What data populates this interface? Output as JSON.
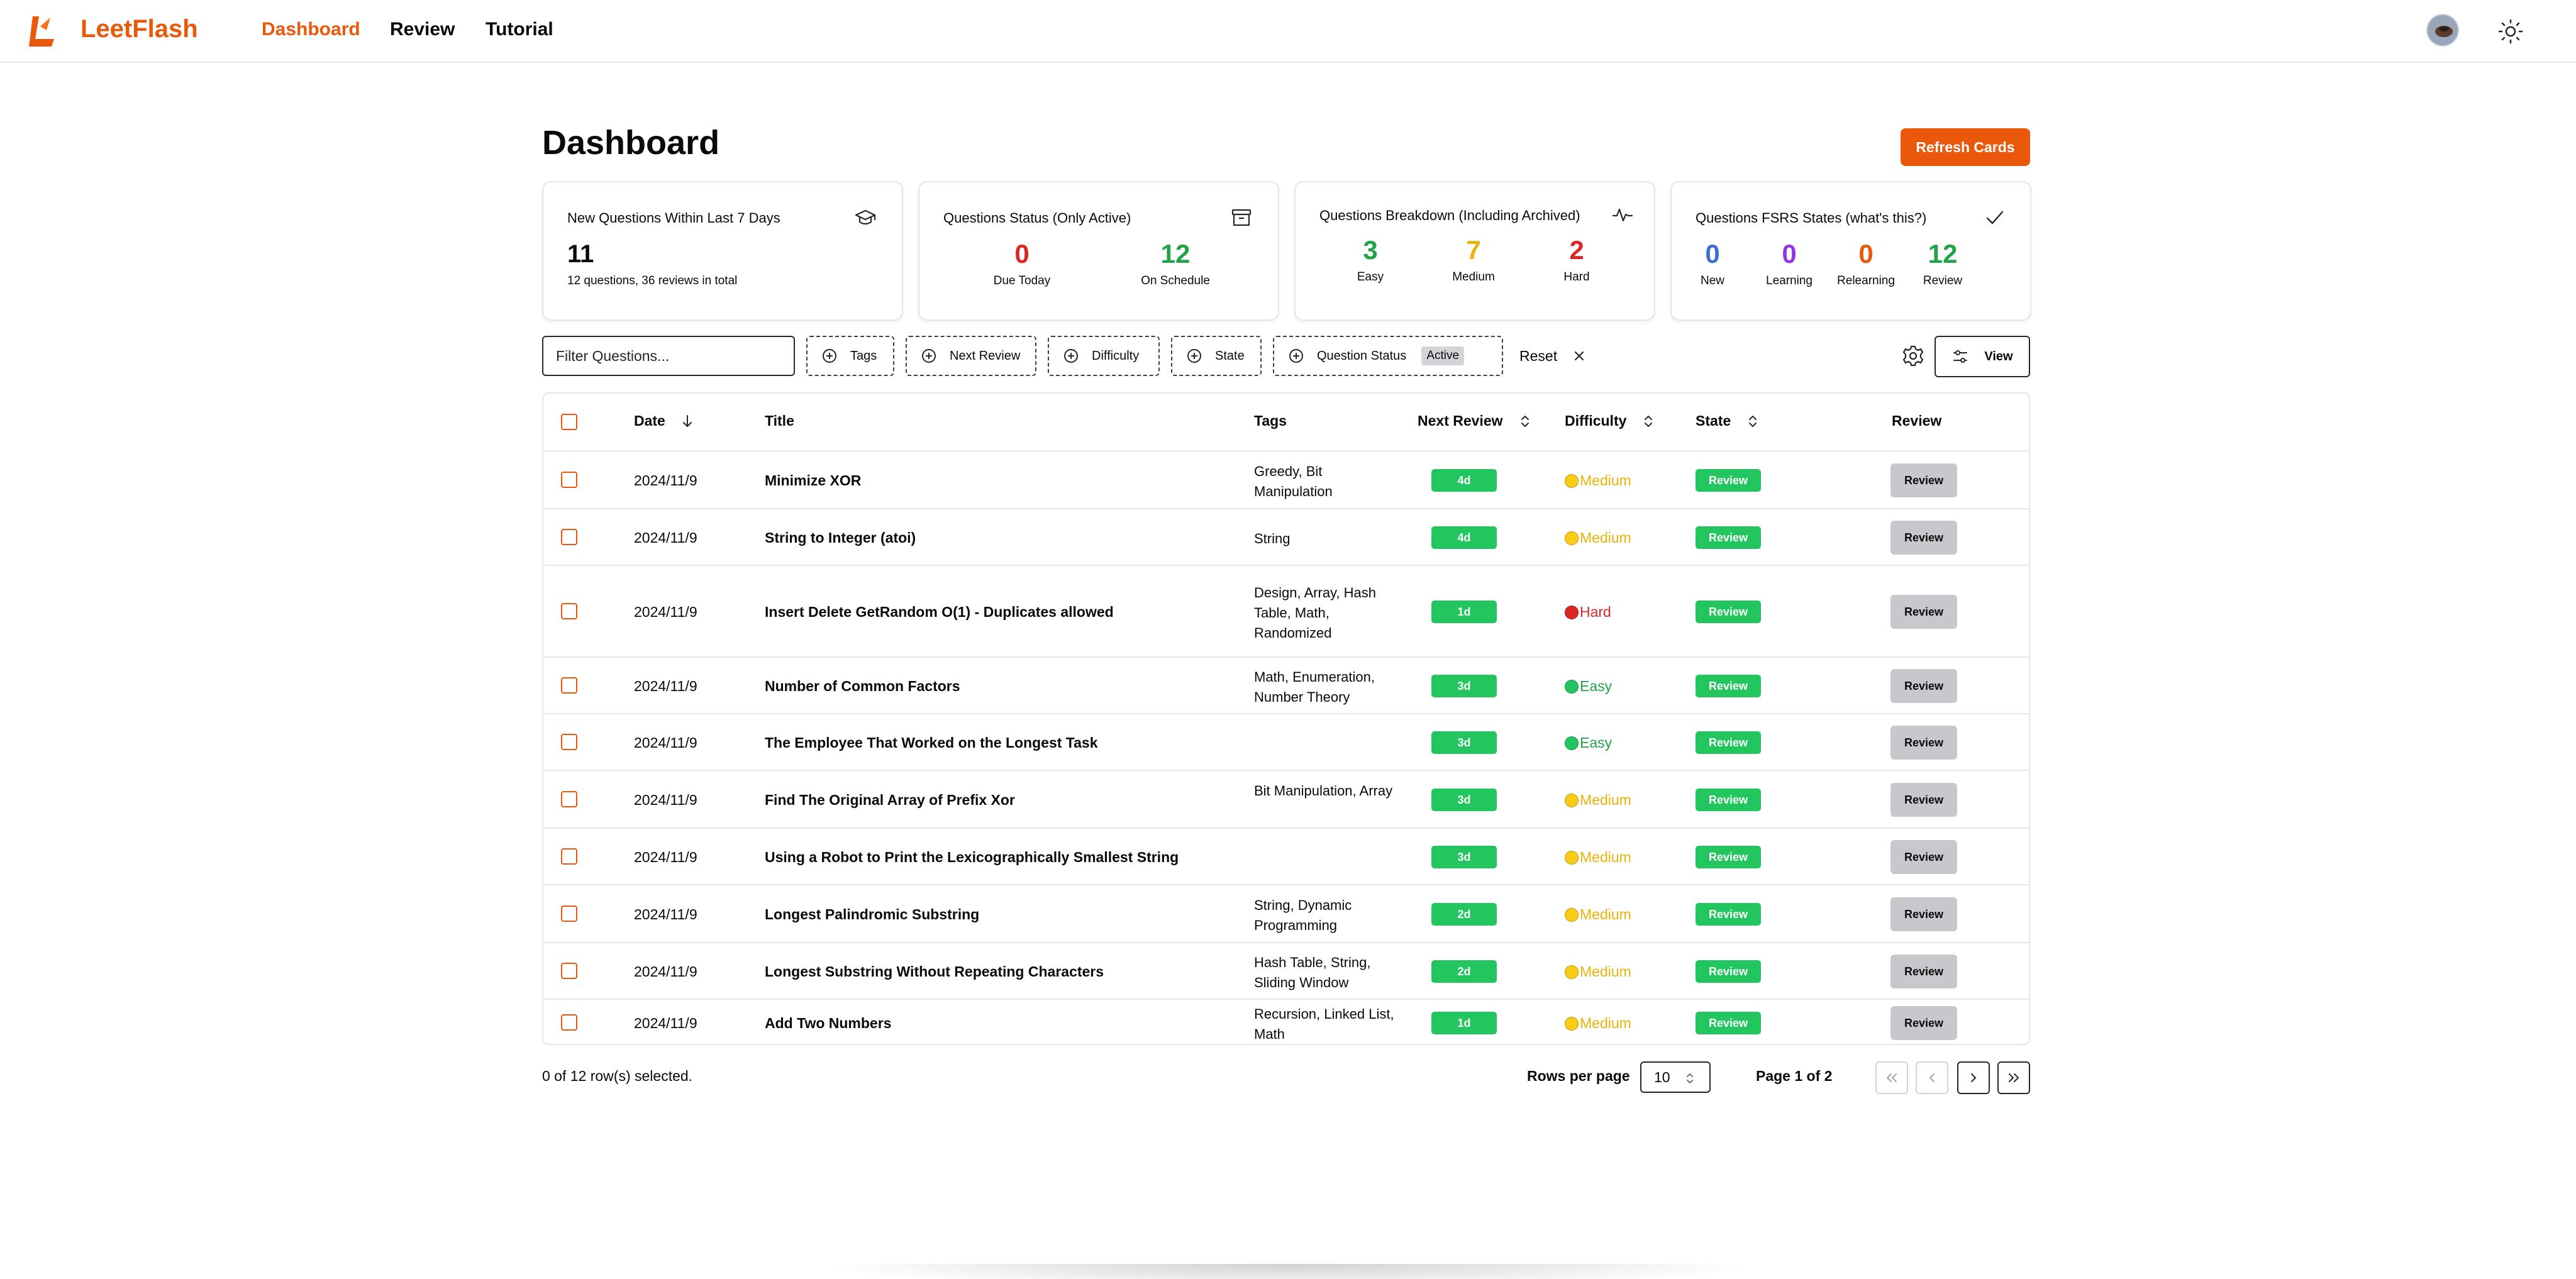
{
  "app": {
    "brand": "LeetFlash",
    "nav": [
      {
        "label": "Dashboard",
        "active": true
      },
      {
        "label": "Review",
        "active": false
      },
      {
        "label": "Tutorial",
        "active": false
      }
    ],
    "accent_color": "#ea580c"
  },
  "header": {
    "title": "Dashboard",
    "refresh_label": "Refresh Cards"
  },
  "cards": {
    "new_questions": {
      "title": "New Questions Within Last 7 Days",
      "icon": "graduation-cap-icon",
      "value": "11",
      "sub": "12 questions, 36 reviews in total"
    },
    "status": {
      "title": "Questions Status (Only Active)",
      "icon": "archive-icon",
      "stats": [
        {
          "value": "0",
          "label": "Due Today",
          "color": "#dc2626"
        },
        {
          "value": "12",
          "label": "On Schedule",
          "color": "#22a34a"
        }
      ]
    },
    "breakdown": {
      "title": "Questions Breakdown (Including Archived)",
      "icon": "activity-icon",
      "stats": [
        {
          "value": "3",
          "label": "Easy",
          "color": "#22a34a"
        },
        {
          "value": "7",
          "label": "Medium",
          "color": "#eab308"
        },
        {
          "value": "2",
          "label": "Hard",
          "color": "#dc2626"
        }
      ]
    },
    "fsrs": {
      "title": "Questions FSRS States (what's this?)",
      "icon": "check-icon",
      "stats": [
        {
          "value": "0",
          "label": "New",
          "color": "#3b6fd4"
        },
        {
          "value": "0",
          "label": "Learning",
          "color": "#9333ea"
        },
        {
          "value": "0",
          "label": "Relearning",
          "color": "#ea580c"
        },
        {
          "value": "12",
          "label": "Review",
          "color": "#22a34a"
        }
      ]
    }
  },
  "filters": {
    "placeholder": "Filter Questions...",
    "tags": "Tags",
    "next_review": "Next Review",
    "difficulty": "Difficulty",
    "state": "State",
    "question_status": "Question Status",
    "active_badge": "Active",
    "reset": "Reset",
    "view": "View"
  },
  "table": {
    "headers": {
      "date": "Date",
      "title": "Title",
      "tags": "Tags",
      "next_review": "Next Review",
      "difficulty": "Difficulty",
      "state": "State",
      "review": "Review"
    },
    "rows": [
      {
        "date": "2024/11/9",
        "title": "Minimize XOR",
        "tags": "Greedy, Bit Manipulation",
        "next": "4d",
        "difficulty": "Medium",
        "state": "Review",
        "action": "Review"
      },
      {
        "date": "2024/11/9",
        "title": "String to Integer (atoi)",
        "tags": "String",
        "next": "4d",
        "difficulty": "Medium",
        "state": "Review",
        "action": "Review"
      },
      {
        "date": "2024/11/9",
        "title": "Insert Delete GetRandom O(1) - Duplicates allowed",
        "tags": "Design, Array, Hash Table, Math, Randomized",
        "next": "1d",
        "difficulty": "Hard",
        "state": "Review",
        "action": "Review"
      },
      {
        "date": "2024/11/9",
        "title": "Number of Common Factors",
        "tags": "Math, Enumeration, Number Theory",
        "next": "3d",
        "difficulty": "Easy",
        "state": "Review",
        "action": "Review"
      },
      {
        "date": "2024/11/9",
        "title": "The Employee That Worked on the Longest Task",
        "tags": "",
        "next": "3d",
        "difficulty": "Easy",
        "state": "Review",
        "action": "Review"
      },
      {
        "date": "2024/11/9",
        "title": "Find The Original Array of Prefix Xor",
        "tags": "Bit Manipulation, Array",
        "next": "3d",
        "difficulty": "Medium",
        "state": "Review",
        "action": "Review"
      },
      {
        "date": "2024/11/9",
        "title": "Using a Robot to Print the Lexicographically Smallest String",
        "tags": "",
        "next": "3d",
        "difficulty": "Medium",
        "state": "Review",
        "action": "Review"
      },
      {
        "date": "2024/11/9",
        "title": "Longest Palindromic Substring",
        "tags": "String, Dynamic Programming",
        "next": "2d",
        "difficulty": "Medium",
        "state": "Review",
        "action": "Review"
      },
      {
        "date": "2024/11/9",
        "title": "Longest Substring Without Repeating Characters",
        "tags": "Hash Table, String, Sliding Window",
        "next": "2d",
        "difficulty": "Medium",
        "state": "Review",
        "action": "Review"
      },
      {
        "date": "2024/11/9",
        "title": "Add Two Numbers",
        "tags": "Recursion, Linked List, Math",
        "next": "1d",
        "difficulty": "Medium",
        "state": "Review",
        "action": "Review"
      }
    ],
    "difficulty_colors": {
      "Easy": "#22a34a",
      "Medium": "#eab308",
      "Hard": "#dc2626"
    }
  },
  "footer": {
    "selected": "0 of 12 row(s) selected.",
    "rows_per_page_label": "Rows per page",
    "rows_per_page": "10",
    "page": "Page 1 of 2"
  }
}
